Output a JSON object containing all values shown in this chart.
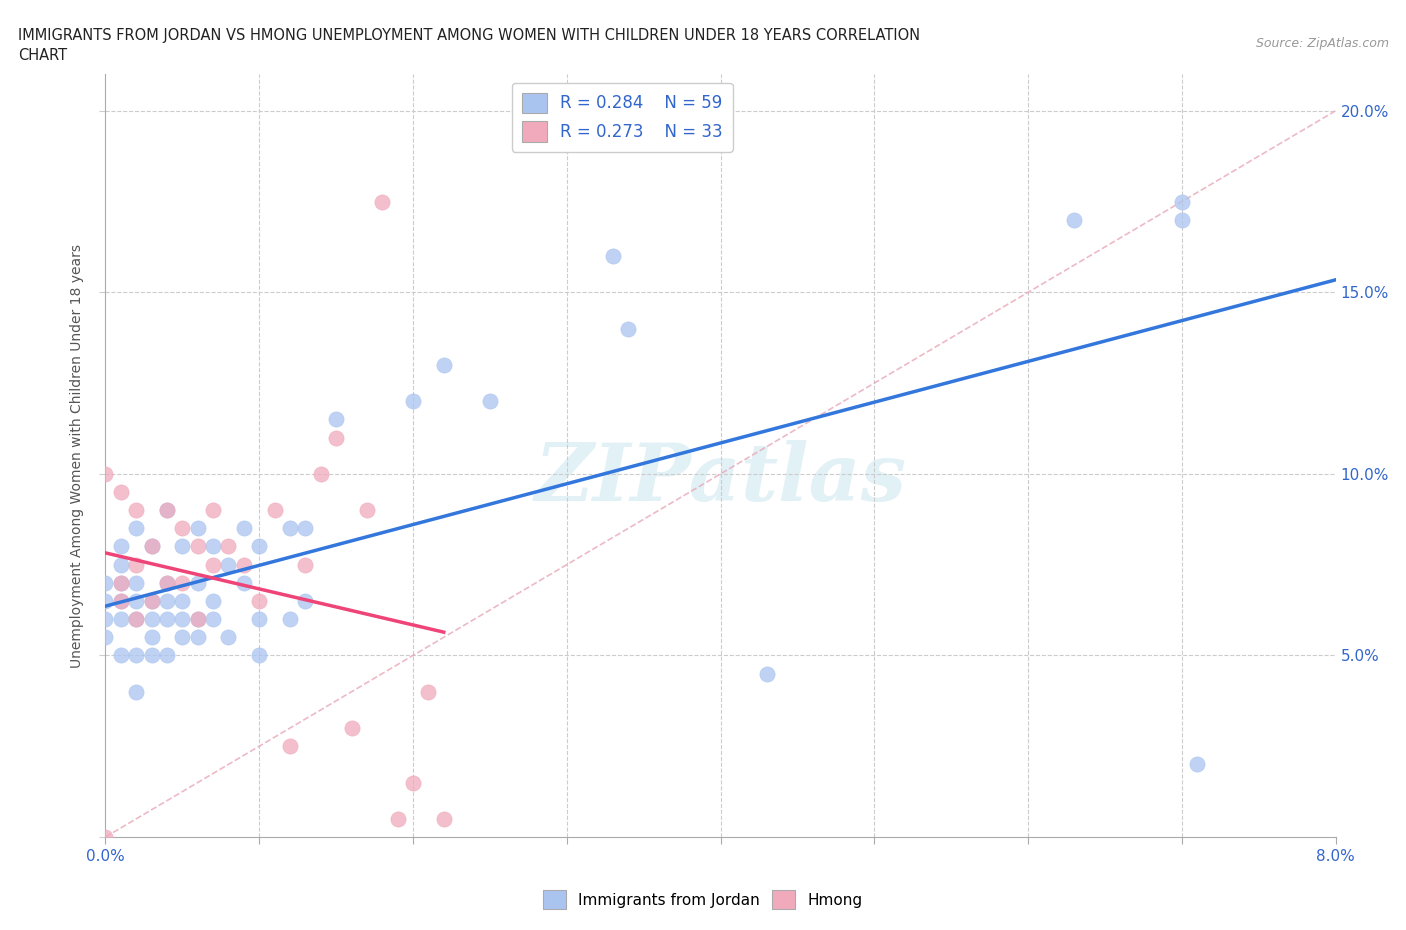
{
  "title_line1": "IMMIGRANTS FROM JORDAN VS HMONG UNEMPLOYMENT AMONG WOMEN WITH CHILDREN UNDER 18 YEARS CORRELATION",
  "title_line2": "CHART",
  "source_text": "Source: ZipAtlas.com",
  "ylabel": "Unemployment Among Women with Children Under 18 years",
  "xlim": [
    0.0,
    0.08
  ],
  "ylim": [
    0.0,
    0.21
  ],
  "jordan_color": "#aac4f0",
  "hmong_color": "#f0aabb",
  "jordan_line_color": "#3377dd",
  "hmong_line_color": "#ee4477",
  "diagonal_color": "#e8a0b0",
  "legend_jordan_R": "R = 0.284",
  "legend_jordan_N": "N = 59",
  "legend_hmong_R": "R = 0.273",
  "legend_hmong_N": "N = 33",
  "jordan_scatter_x": [
    0.0,
    0.0,
    0.0,
    0.0,
    0.001,
    0.001,
    0.001,
    0.001,
    0.001,
    0.001,
    0.002,
    0.002,
    0.002,
    0.002,
    0.002,
    0.002,
    0.003,
    0.003,
    0.003,
    0.003,
    0.003,
    0.004,
    0.004,
    0.004,
    0.004,
    0.004,
    0.005,
    0.005,
    0.005,
    0.005,
    0.006,
    0.006,
    0.006,
    0.006,
    0.007,
    0.007,
    0.007,
    0.008,
    0.008,
    0.009,
    0.009,
    0.01,
    0.01,
    0.01,
    0.012,
    0.012,
    0.013,
    0.013,
    0.015,
    0.02,
    0.022,
    0.025,
    0.033,
    0.034,
    0.043,
    0.063,
    0.07,
    0.07,
    0.071
  ],
  "jordan_scatter_y": [
    0.065,
    0.07,
    0.055,
    0.06,
    0.06,
    0.065,
    0.07,
    0.05,
    0.075,
    0.08,
    0.05,
    0.06,
    0.065,
    0.07,
    0.04,
    0.085,
    0.05,
    0.055,
    0.06,
    0.065,
    0.08,
    0.05,
    0.06,
    0.065,
    0.07,
    0.09,
    0.055,
    0.06,
    0.065,
    0.08,
    0.055,
    0.06,
    0.07,
    0.085,
    0.06,
    0.065,
    0.08,
    0.055,
    0.075,
    0.07,
    0.085,
    0.05,
    0.06,
    0.08,
    0.06,
    0.085,
    0.065,
    0.085,
    0.115,
    0.12,
    0.13,
    0.12,
    0.16,
    0.14,
    0.045,
    0.17,
    0.17,
    0.175,
    0.02
  ],
  "hmong_scatter_x": [
    0.0,
    0.0,
    0.001,
    0.001,
    0.001,
    0.002,
    0.002,
    0.002,
    0.003,
    0.003,
    0.004,
    0.004,
    0.005,
    0.005,
    0.006,
    0.006,
    0.007,
    0.007,
    0.008,
    0.009,
    0.01,
    0.011,
    0.012,
    0.013,
    0.014,
    0.015,
    0.016,
    0.017,
    0.018,
    0.019,
    0.02,
    0.021,
    0.022
  ],
  "hmong_scatter_y": [
    0.0,
    0.1,
    0.065,
    0.07,
    0.095,
    0.06,
    0.075,
    0.09,
    0.065,
    0.08,
    0.07,
    0.09,
    0.07,
    0.085,
    0.06,
    0.08,
    0.075,
    0.09,
    0.08,
    0.075,
    0.065,
    0.09,
    0.025,
    0.075,
    0.1,
    0.11,
    0.03,
    0.09,
    0.175,
    0.005,
    0.015,
    0.04,
    0.005
  ]
}
